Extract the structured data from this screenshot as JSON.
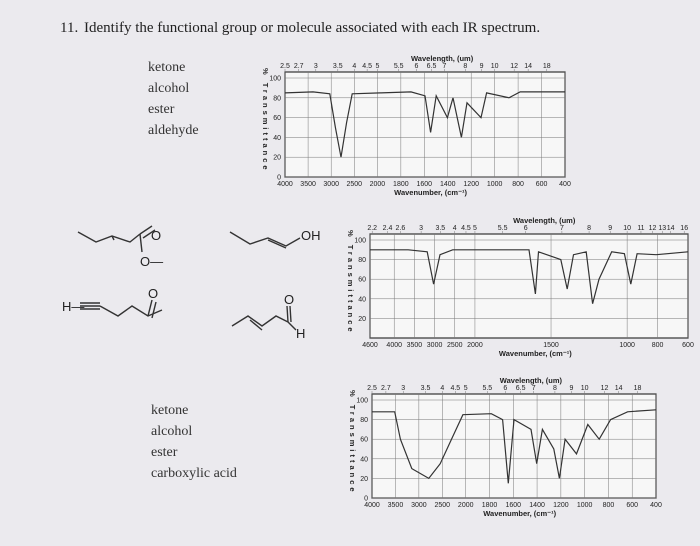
{
  "question": {
    "number": "11.",
    "text": "Identify the functional group or molecule associated with each IR spectrum."
  },
  "choices_top": [
    "ketone",
    "alcohol",
    "ester",
    "aldehyde"
  ],
  "choices_bottom": [
    "ketone",
    "alcohol",
    "ester",
    "carboxylic acid"
  ],
  "molecules": [
    {
      "atoms": [
        "O",
        "O—"
      ]
    },
    {
      "atoms": [
        "OH"
      ]
    },
    {
      "atoms": [
        "H—",
        "O"
      ]
    },
    {
      "atoms": [
        "O",
        "H"
      ]
    }
  ],
  "spectra": [
    {
      "wavelength_label": "Wavelength, (um)",
      "wavelength_ticks": [
        2.5,
        2.7,
        3,
        3.5,
        4,
        4.5,
        5,
        5.5,
        6,
        6.5,
        7,
        8,
        9,
        10,
        12,
        14,
        18
      ],
      "y_label": "% Transmittance",
      "y_ticks": [
        100,
        80,
        60,
        40,
        20,
        0
      ],
      "wavenumber_label": "Wavenumber, (cm⁻¹)",
      "wavenumber_ticks": [
        4000,
        3500,
        3000,
        2500,
        2000,
        1800,
        1600,
        1400,
        1200,
        1000,
        800,
        600,
        400
      ]
    },
    {
      "wavelength_label": "Wavelength, (um)",
      "wavelength_ticks": [
        2.2,
        2.4,
        2.6,
        3,
        3.5,
        4,
        4.5,
        5,
        5.5,
        6,
        7,
        8,
        9,
        10,
        11,
        12,
        13,
        14,
        16
      ],
      "y_label": "% Transmittance",
      "y_ticks": [
        100,
        80,
        60,
        40,
        20
      ],
      "wavenumber_label": "Wavenumber, (cm⁻¹)",
      "wavenumber_ticks": [
        4600,
        4000,
        3500,
        3000,
        2500,
        2000,
        1500,
        1000,
        800,
        600
      ]
    },
    {
      "wavelength_label": "Wavelength, (um)",
      "wavelength_ticks": [
        2.5,
        2.7,
        3,
        3.5,
        4,
        4.5,
        5,
        5.5,
        6,
        6.5,
        7,
        8,
        9,
        10,
        12,
        14,
        18
      ],
      "y_label": "% Transmittance",
      "y_ticks": [
        100,
        80,
        60,
        40,
        20,
        0
      ],
      "wavenumber_label": "Wavenumber, (cm⁻¹)",
      "wavenumber_ticks": [
        4000,
        3500,
        3000,
        2500,
        2000,
        1800,
        1600,
        1400,
        1200,
        1000,
        800,
        600,
        400
      ]
    }
  ]
}
